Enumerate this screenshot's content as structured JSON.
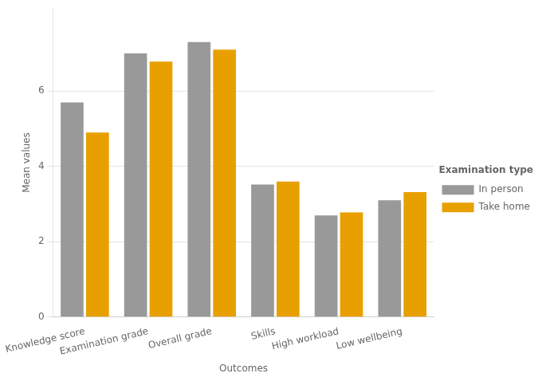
{
  "chart_data": {
    "type": "bar",
    "categories": [
      "Knowledge score",
      "Examination grade",
      "Overall grade",
      "Skills",
      "High workload",
      "Low wellbeing"
    ],
    "series": [
      {
        "name": "In person",
        "color": "#999999",
        "values": [
          5.7,
          7.0,
          7.3,
          3.52,
          2.7,
          3.1
        ]
      },
      {
        "name": "Take home",
        "color": "#E8A000",
        "values": [
          4.9,
          6.78,
          7.1,
          3.6,
          2.78,
          3.32
        ]
      }
    ],
    "xlabel": "Outcomes",
    "ylabel": "Mean values",
    "legend_title": "Examination type",
    "ylim": [
      0,
      8.2
    ],
    "yticks": [
      0,
      2,
      4,
      6
    ],
    "grid": true,
    "legend": "right"
  }
}
